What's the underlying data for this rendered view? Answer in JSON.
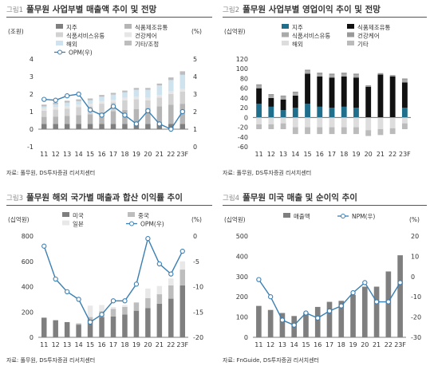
{
  "figures": [
    {
      "figure_no": "그림1",
      "title": "풀무원 사업부별 매출액 추이 및 전망",
      "source": "자료: 풀무원, DS투자증권 리서치센터",
      "left_unit": "(조원)",
      "right_unit": "(%)"
    },
    {
      "figure_no": "그림2",
      "title": "풀무원 사업부별 영업이익 추이 및 전망",
      "source": "자료: 풀무원, DS투자증권 리서치센터",
      "left_unit": "(십억원)",
      "right_unit": ""
    },
    {
      "figure_no": "그림3",
      "title": "풀무원 해외 국가별 매출과 합산 이익률 추이",
      "source": "자료: 풀무원, DS투자증권 리서치센터",
      "left_unit": "(십억원)",
      "right_unit": "(%)"
    },
    {
      "figure_no": "그림4",
      "title": "풀무원 미국 매출 및 순이익 추이",
      "source": "자료: FnGuide, DS투자증권 리서치센터",
      "left_unit": "(십억원)",
      "right_unit": "(%)"
    }
  ],
  "chart_data": [
    {
      "type": "bar",
      "stacked": true,
      "categories": [
        "11",
        "12",
        "13",
        "14",
        "15",
        "16",
        "17",
        "18",
        "19",
        "20",
        "21",
        "22",
        "23F"
      ],
      "series": [
        {
          "name": "지주",
          "color": "#7f7f7f",
          "axis": "left",
          "values": [
            0.3,
            0.3,
            0.3,
            0.3,
            0.3,
            0.3,
            0.3,
            0.3,
            0.3,
            0.3,
            0.3,
            0.3,
            0.3
          ]
        },
        {
          "name": "식품제조유통",
          "color": "#b5b5b5",
          "axis": "left",
          "values": [
            0.4,
            0.42,
            0.45,
            0.5,
            0.55,
            0.65,
            0.72,
            0.8,
            0.85,
            0.9,
            1.0,
            1.1,
            1.15
          ]
        },
        {
          "name": "식품서비스유통",
          "color": "#d2d2d2",
          "axis": "left",
          "values": [
            0.35,
            0.4,
            0.42,
            0.45,
            0.45,
            0.5,
            0.5,
            0.55,
            0.55,
            0.45,
            0.5,
            0.6,
            0.7
          ]
        },
        {
          "name": "건강케어",
          "color": "#e6e6e6",
          "axis": "left",
          "values": [
            0.15,
            0.15,
            0.15,
            0.15,
            0.15,
            0.15,
            0.15,
            0.15,
            0.15,
            0.15,
            0.15,
            0.15,
            0.15
          ]
        },
        {
          "name": "해외",
          "color": "#cfe3ee",
          "axis": "left",
          "values": [
            0.1,
            0.15,
            0.2,
            0.2,
            0.2,
            0.25,
            0.3,
            0.3,
            0.4,
            0.45,
            0.55,
            0.65,
            0.8
          ]
        },
        {
          "name": "기타/조정",
          "color": "#bdbdbd",
          "axis": "left",
          "values": [
            0.1,
            0.1,
            0.1,
            0.1,
            0.1,
            0.1,
            0.1,
            0.1,
            0.1,
            0.1,
            0.1,
            0.15,
            0.2
          ]
        },
        {
          "name": "OPM(우)",
          "type": "line",
          "color": "#3a7fb3",
          "axis": "right",
          "values": [
            2.7,
            2.65,
            2.9,
            3.0,
            2.1,
            1.8,
            2.3,
            1.8,
            1.3,
            2.05,
            1.3,
            1.0,
            2.0
          ]
        }
      ],
      "ylim_left": [
        -1,
        4
      ],
      "yticks_left": [
        -1,
        0,
        1,
        2,
        3,
        4
      ],
      "ylim_right": [
        0,
        5
      ],
      "yticks_right": [
        0,
        1,
        2,
        3,
        4,
        5
      ],
      "legend": "top"
    },
    {
      "type": "bar",
      "stacked": true,
      "categories": [
        "11",
        "12",
        "13",
        "14",
        "15",
        "16",
        "17",
        "18",
        "19",
        "20",
        "21",
        "22",
        "23F"
      ],
      "series": [
        {
          "name": "지주",
          "color": "#1f6e8c",
          "values": [
            28,
            22,
            15,
            20,
            28,
            22,
            20,
            22,
            20,
            0,
            0,
            0,
            20
          ]
        },
        {
          "name": "식품제조유통",
          "color": "#111111",
          "values": [
            32,
            18,
            22,
            25,
            62,
            62,
            62,
            62,
            62,
            63,
            88,
            84,
            52
          ]
        },
        {
          "name": "식품서비스유통",
          "color": "#aaaaaa",
          "values": [
            5,
            5,
            5,
            5,
            5,
            5,
            5,
            5,
            5,
            0,
            0,
            0,
            5
          ]
        },
        {
          "name": "건강케어",
          "color": "#999999",
          "values": [
            3,
            3,
            3,
            3,
            3,
            3,
            3,
            3,
            3,
            3,
            3,
            3,
            3
          ]
        },
        {
          "name": "해외",
          "color": "#dddddd",
          "values": [
            -14,
            -14,
            -12,
            -20,
            -20,
            -20,
            -20,
            -20,
            -20,
            -26,
            -24,
            -22,
            -12
          ]
        },
        {
          "name": "기타",
          "color": "#bbbbbb",
          "values": [
            -10,
            -10,
            -12,
            -14,
            -14,
            -14,
            -14,
            -14,
            -14,
            -12,
            -12,
            -12,
            -12
          ]
        }
      ],
      "ylim": [
        -60,
        120
      ],
      "yticks": [
        -60,
        -40,
        -20,
        0,
        20,
        40,
        60,
        80,
        100,
        120
      ],
      "legend": "top"
    },
    {
      "type": "bar",
      "stacked": true,
      "categories": [
        "11",
        "12",
        "13",
        "14",
        "15",
        "16",
        "17",
        "18",
        "19",
        "20",
        "21",
        "22",
        "23F"
      ],
      "series": [
        {
          "name": "미국",
          "color": "#7f7f7f",
          "axis": "left",
          "values": [
            155,
            135,
            120,
            100,
            140,
            160,
            165,
            180,
            210,
            230,
            265,
            305,
            410
          ]
        },
        {
          "name": "중국",
          "color": "#bdbdbd",
          "axis": "left",
          "values": [
            0,
            0,
            0,
            10,
            20,
            45,
            60,
            60,
            65,
            80,
            75,
            105,
            125
          ]
        },
        {
          "name": "일본",
          "color": "#e8e8e8",
          "axis": "left",
          "values": [
            0,
            0,
            0,
            0,
            90,
            50,
            15,
            15,
            0,
            75,
            65,
            55,
            65
          ]
        },
        {
          "name": "OPM(우)",
          "type": "line",
          "color": "#3a7fb3",
          "axis": "right",
          "values": [
            -2.0,
            -8.5,
            -11.0,
            -12.5,
            -17.0,
            -15.5,
            -12.8,
            -12.8,
            -9.5,
            -0.5,
            -5.5,
            -7.5,
            -3.0
          ]
        }
      ],
      "ylim_left": [
        0,
        800
      ],
      "yticks_left": [
        0,
        200,
        400,
        600,
        800
      ],
      "ylim_right": [
        -20,
        0
      ],
      "yticks_right": [
        -20,
        -15,
        -10,
        -5,
        0
      ],
      "legend": "top"
    },
    {
      "type": "bar",
      "categories": [
        "11",
        "12",
        "13",
        "14",
        "15",
        "16",
        "17",
        "18",
        "19",
        "20",
        "21",
        "22",
        "23F"
      ],
      "series": [
        {
          "name": "매출액",
          "color": "#7f7f7f",
          "axis": "left",
          "values": [
            155,
            135,
            120,
            105,
            120,
            150,
            175,
            180,
            210,
            250,
            250,
            325,
            405
          ]
        },
        {
          "name": "NPM(우)",
          "type": "line",
          "color": "#3a7fb3",
          "axis": "right",
          "values": [
            -1.5,
            -10.0,
            -21.5,
            -24.0,
            -18.0,
            -20.5,
            -17.0,
            -14.5,
            -8.0,
            -3.0,
            -12.5,
            -12.5,
            -3.0
          ]
        }
      ],
      "ylim_left": [
        0,
        500
      ],
      "yticks_left": [
        0,
        100,
        200,
        300,
        400,
        500
      ],
      "ylim_right": [
        -30,
        20
      ],
      "yticks_right": [
        -30,
        -20,
        -10,
        0,
        10,
        20
      ],
      "legend": "top"
    }
  ]
}
